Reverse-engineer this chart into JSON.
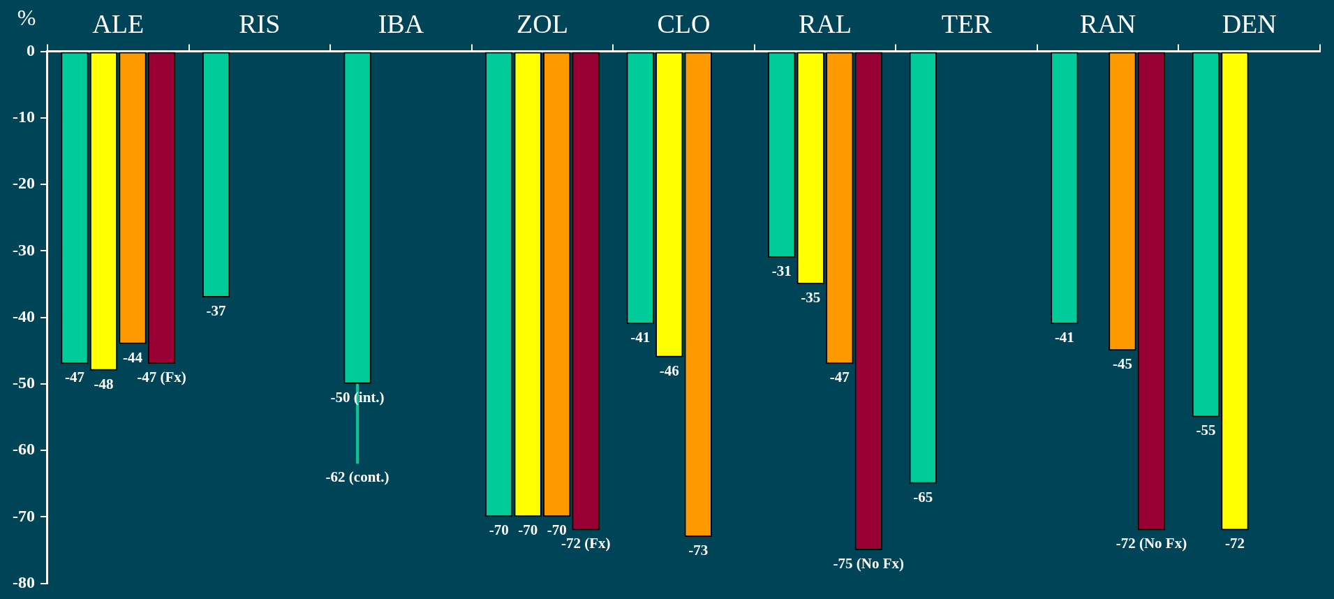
{
  "chart_data": {
    "type": "bar",
    "ylabel": "%",
    "categories": [
      "ALE",
      "RIS",
      "IBA",
      "ZOL",
      "CLO",
      "RAL",
      "TER",
      "RAN",
      "DEN"
    ],
    "series": [
      {
        "color": "#00cc99",
        "values": [
          -47,
          -37,
          -50,
          -70,
          -41,
          -31,
          -65,
          -41,
          -55
        ],
        "value_labels": [
          "-47",
          "-37",
          "-50 (int.)",
          "-70",
          "-41",
          "-31",
          "-65",
          "-41",
          "-55"
        ],
        "errors": [
          null,
          null,
          [
            -62,
            -50
          ],
          null,
          null,
          null,
          null,
          null,
          null
        ]
      },
      {
        "color": "#ffff00",
        "values": [
          -48,
          null,
          null,
          -70,
          -46,
          -35,
          null,
          null,
          -72
        ],
        "value_labels": [
          "-48",
          null,
          null,
          "-70",
          "-46",
          "-35",
          null,
          null,
          "-72"
        ]
      },
      {
        "color": "#ff9900",
        "values": [
          -44,
          null,
          null,
          -70,
          -73,
          -47,
          null,
          -45,
          null
        ],
        "value_labels": [
          "-44",
          null,
          null,
          "-70",
          "-73",
          "-47",
          null,
          "-45",
          null
        ]
      },
      {
        "color": "#990033",
        "values": [
          -47,
          null,
          null,
          -72,
          null,
          -75,
          null,
          -72,
          null
        ],
        "value_labels": [
          "-47 (Fx)",
          null,
          null,
          "-72 (Fx)",
          null,
          "-75 (No Fx)",
          null,
          "-72 (No Fx)",
          null
        ]
      }
    ],
    "ylim": [
      -80,
      0
    ],
    "yticks": [
      0,
      -10,
      -20,
      -30,
      -40,
      -50,
      -60,
      -70,
      -80
    ],
    "grid": false,
    "legend": false,
    "annotations": [
      "-62 (cont.)"
    ]
  }
}
